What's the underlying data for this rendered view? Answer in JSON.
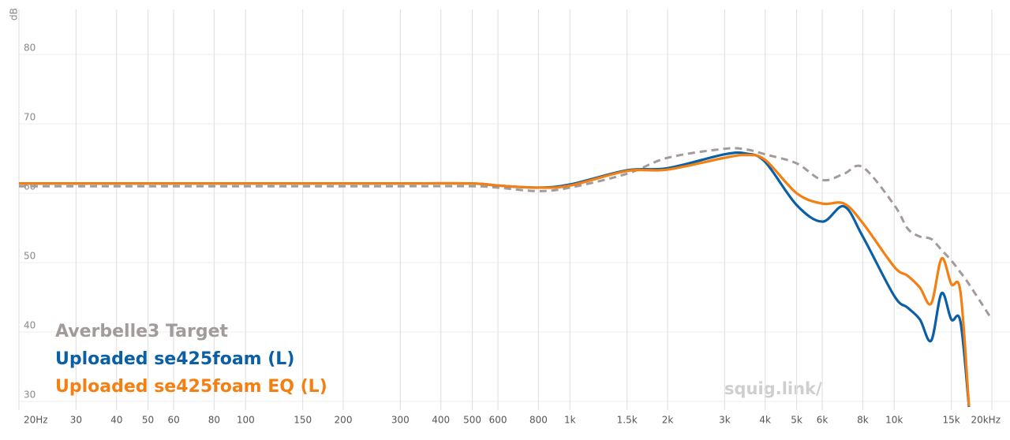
{
  "chart_data": {
    "type": "line",
    "y_label": "dB",
    "watermark": "squig.link/",
    "log_x": true,
    "grid": true,
    "xlim": [
      20,
      20000
    ],
    "ylim": [
      29,
      87
    ],
    "xticks": [
      {
        "value": 20,
        "label": "20Hz"
      },
      30,
      40,
      50,
      60,
      80,
      100,
      150,
      200,
      300,
      400,
      500,
      600,
      800,
      {
        "value": 1000,
        "label": "1k"
      },
      {
        "value": 1500,
        "label": "1.5k"
      },
      {
        "value": 2000,
        "label": "2k"
      },
      {
        "value": 3000,
        "label": "3k"
      },
      {
        "value": 4000,
        "label": "4k"
      },
      {
        "value": 5000,
        "label": "5k"
      },
      {
        "value": 6000,
        "label": "6k"
      },
      {
        "value": 8000,
        "label": "8k"
      },
      {
        "value": 10000,
        "label": "10k"
      },
      {
        "value": 15000,
        "label": "15k"
      },
      {
        "value": 20000,
        "label": "20kHz"
      }
    ],
    "yticks": [
      30,
      40,
      50,
      60,
      70,
      80
    ],
    "x": [
      20,
      30,
      40,
      60,
      100,
      200,
      300,
      500,
      600,
      800,
      1000,
      1500,
      2000,
      3000,
      3500,
      4000,
      5000,
      6000,
      7000,
      8000,
      10000,
      11000,
      12000,
      13000,
      14000,
      15000,
      16000,
      17000,
      20000
    ],
    "series": [
      {
        "name": "Averbelle3 Target",
        "color": "#a39a9a",
        "dashed": true,
        "values": [
          61.0,
          61.0,
          61.0,
          61.0,
          61.0,
          61.0,
          61.0,
          61.0,
          60.8,
          60.3,
          60.8,
          62.8,
          65.1,
          66.4,
          66.3,
          65.6,
          64.3,
          61.9,
          62.8,
          63.75,
          58.3,
          54.9,
          53.75,
          53.4,
          51.8,
          50.3,
          48.6,
          46.9,
          41.8
        ]
      },
      {
        "name": "Uploaded se425foam (L)",
        "color": "#0b5fa5",
        "dashed": false,
        "values": [
          61.4,
          61.4,
          61.4,
          61.4,
          61.4,
          61.4,
          61.4,
          61.4,
          61.1,
          60.8,
          61.25,
          63.3,
          63.6,
          65.6,
          65.7,
          64.5,
          58.3,
          55.9,
          58.1,
          53.75,
          45.2,
          43.5,
          41.8,
          38.75,
          45.6,
          41.8,
          41.5,
          29.2,
          null
        ]
      },
      {
        "name": "Uploaded se425foam EQ (L)",
        "color": "#f47f12",
        "dashed": false,
        "values": [
          61.4,
          61.4,
          61.4,
          61.4,
          61.4,
          61.4,
          61.4,
          61.4,
          61.1,
          60.8,
          61.1,
          63.2,
          63.4,
          65.1,
          65.5,
          64.8,
          60.0,
          58.5,
          58.5,
          55.7,
          49.4,
          48.1,
          46.4,
          44.1,
          50.6,
          46.9,
          45.8,
          29.3,
          null
        ]
      }
    ]
  }
}
